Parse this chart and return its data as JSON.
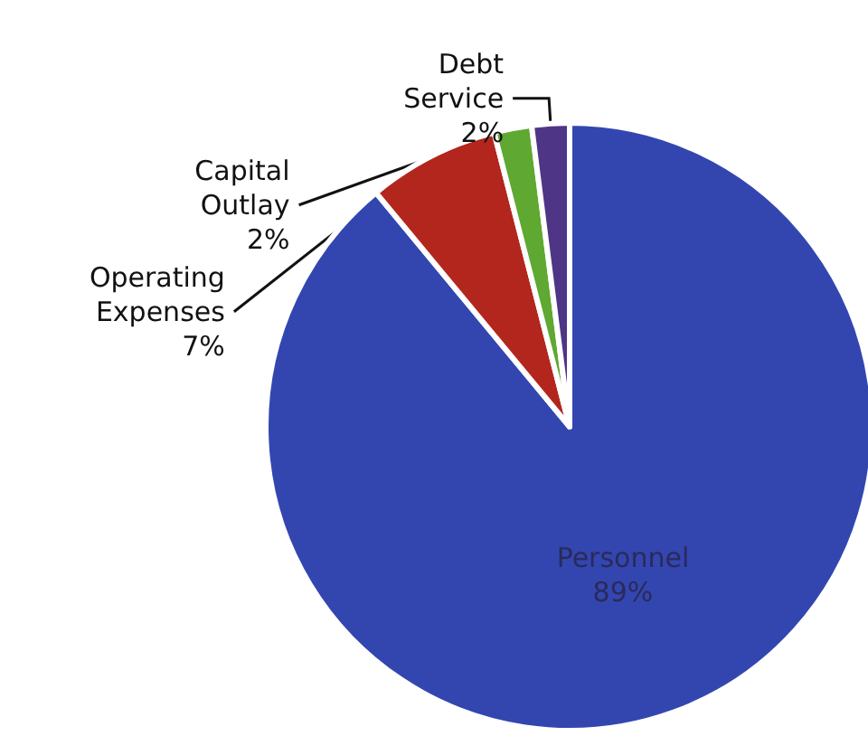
{
  "chart_data": {
    "type": "pie",
    "categories": [
      "Personnel",
      "Operating Expenses",
      "Capital Outlay",
      "Debt Service"
    ],
    "values": [
      89,
      7,
      2,
      2
    ],
    "colors": [
      "#3346b0",
      "#b3261e",
      "#5fa832",
      "#4f3585"
    ],
    "value_labels": [
      "89%",
      "7%",
      "2%",
      "2%"
    ]
  }
}
